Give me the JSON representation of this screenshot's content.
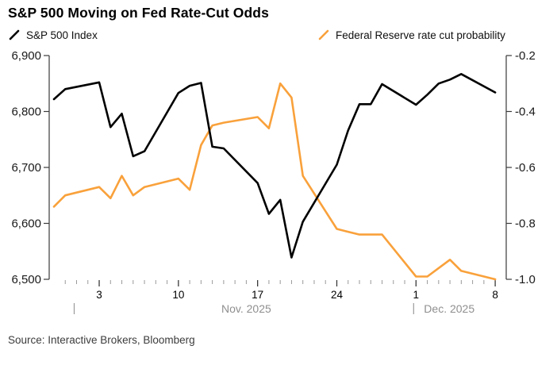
{
  "title": "S&P 500 Moving on Fed Rate-Cut Odds",
  "source": "Source: Interactive Brokers, Bloomberg",
  "colors": {
    "sp500_line": "#000000",
    "ratecut_line": "#F9A13B",
    "axis": "#3a3a3a",
    "minor_tick": "#9a9a9a",
    "month_text": "#8f8f8f",
    "day_text": "#000000",
    "y_label_text": "#1a1a1a"
  },
  "chart_data": {
    "type": "line",
    "title": "S&P 500 Moving on Fed Rate-Cut Odds",
    "legend_position": "top",
    "grid": false,
    "left_axis": {
      "min": 6500,
      "max": 6900,
      "tick_values": [
        6900,
        6800,
        6700,
        6600,
        6500
      ],
      "tick_labels": [
        "6,900",
        "6,800",
        "6,700",
        "6,600",
        "6,500"
      ]
    },
    "right_axis": {
      "min": -1.0,
      "max": -0.2,
      "tick_values": [
        -0.2,
        -0.4,
        -0.6,
        -0.8,
        -1.0
      ],
      "tick_labels": [
        "-0.2",
        "-0.4",
        "-0.6",
        "-0.8",
        "-1.0"
      ]
    },
    "x_axis": {
      "unit": "date",
      "start": "2025-10-30",
      "end": "2025-12-08",
      "minor_tick_start": "2025-10-31",
      "minor_tick_end": "2025-12-08",
      "ticks": [
        {
          "date": "2025-11-03",
          "label": "3"
        },
        {
          "date": "2025-11-10",
          "label": "10"
        },
        {
          "date": "2025-11-17",
          "label": "17"
        },
        {
          "date": "2025-11-24",
          "label": "24"
        },
        {
          "date": "2025-12-01",
          "label": "1"
        },
        {
          "date": "2025-12-08",
          "label": "8"
        }
      ],
      "month_labels": [
        {
          "divider_date": "2025-11-01",
          "label": "Nov. 2025",
          "align": "center",
          "center_between": "2025-12-01"
        },
        {
          "divider_date": "2025-12-01",
          "label": "Dec. 2025",
          "align": "left"
        }
      ]
    },
    "series": [
      {
        "name": "S&P 500 Index",
        "axis": "left",
        "color": "#000000",
        "dates": [
          "2025-10-30",
          "2025-10-31",
          "2025-11-03",
          "2025-11-04",
          "2025-11-05",
          "2025-11-06",
          "2025-11-07",
          "2025-11-10",
          "2025-11-11",
          "2025-11-12",
          "2025-11-13",
          "2025-11-14",
          "2025-11-17",
          "2025-11-18",
          "2025-11-19",
          "2025-11-20",
          "2025-11-21",
          "2025-11-24",
          "2025-11-25",
          "2025-11-26",
          "2025-11-27",
          "2025-11-28",
          "2025-12-01",
          "2025-12-02",
          "2025-12-03",
          "2025-12-04",
          "2025-12-05",
          "2025-12-08"
        ],
        "values": [
          6822,
          6840,
          6852,
          6772,
          6796,
          6720,
          6729,
          6833,
          6846,
          6851,
          6737,
          6734,
          6672,
          6617,
          6642,
          6539,
          6603,
          6705,
          6766,
          6813,
          6813,
          6849,
          6812,
          6830,
          6850,
          6857,
          6867,
          6834
        ]
      },
      {
        "name": "Federal Reserve rate cut probability",
        "axis": "right",
        "color": "#F9A13B",
        "dates": [
          "2025-10-30",
          "2025-10-31",
          "2025-11-03",
          "2025-11-04",
          "2025-11-05",
          "2025-11-06",
          "2025-11-07",
          "2025-11-10",
          "2025-11-11",
          "2025-11-12",
          "2025-11-13",
          "2025-11-14",
          "2025-11-17",
          "2025-11-18",
          "2025-11-19",
          "2025-11-20",
          "2025-11-21",
          "2025-11-24",
          "2025-11-25",
          "2025-11-26",
          "2025-11-27",
          "2025-11-28",
          "2025-12-01",
          "2025-12-02",
          "2025-12-03",
          "2025-12-04",
          "2025-12-05",
          "2025-12-08"
        ],
        "values": [
          -0.74,
          -0.7,
          -0.67,
          -0.71,
          -0.63,
          -0.7,
          -0.67,
          -0.64,
          -0.68,
          -0.52,
          -0.45,
          -0.44,
          -0.42,
          -0.46,
          -0.3,
          -0.35,
          -0.63,
          -0.82,
          -0.83,
          -0.84,
          -0.84,
          -0.84,
          -0.99,
          -0.99,
          -0.96,
          -0.93,
          -0.97,
          -1.0
        ]
      }
    ]
  }
}
